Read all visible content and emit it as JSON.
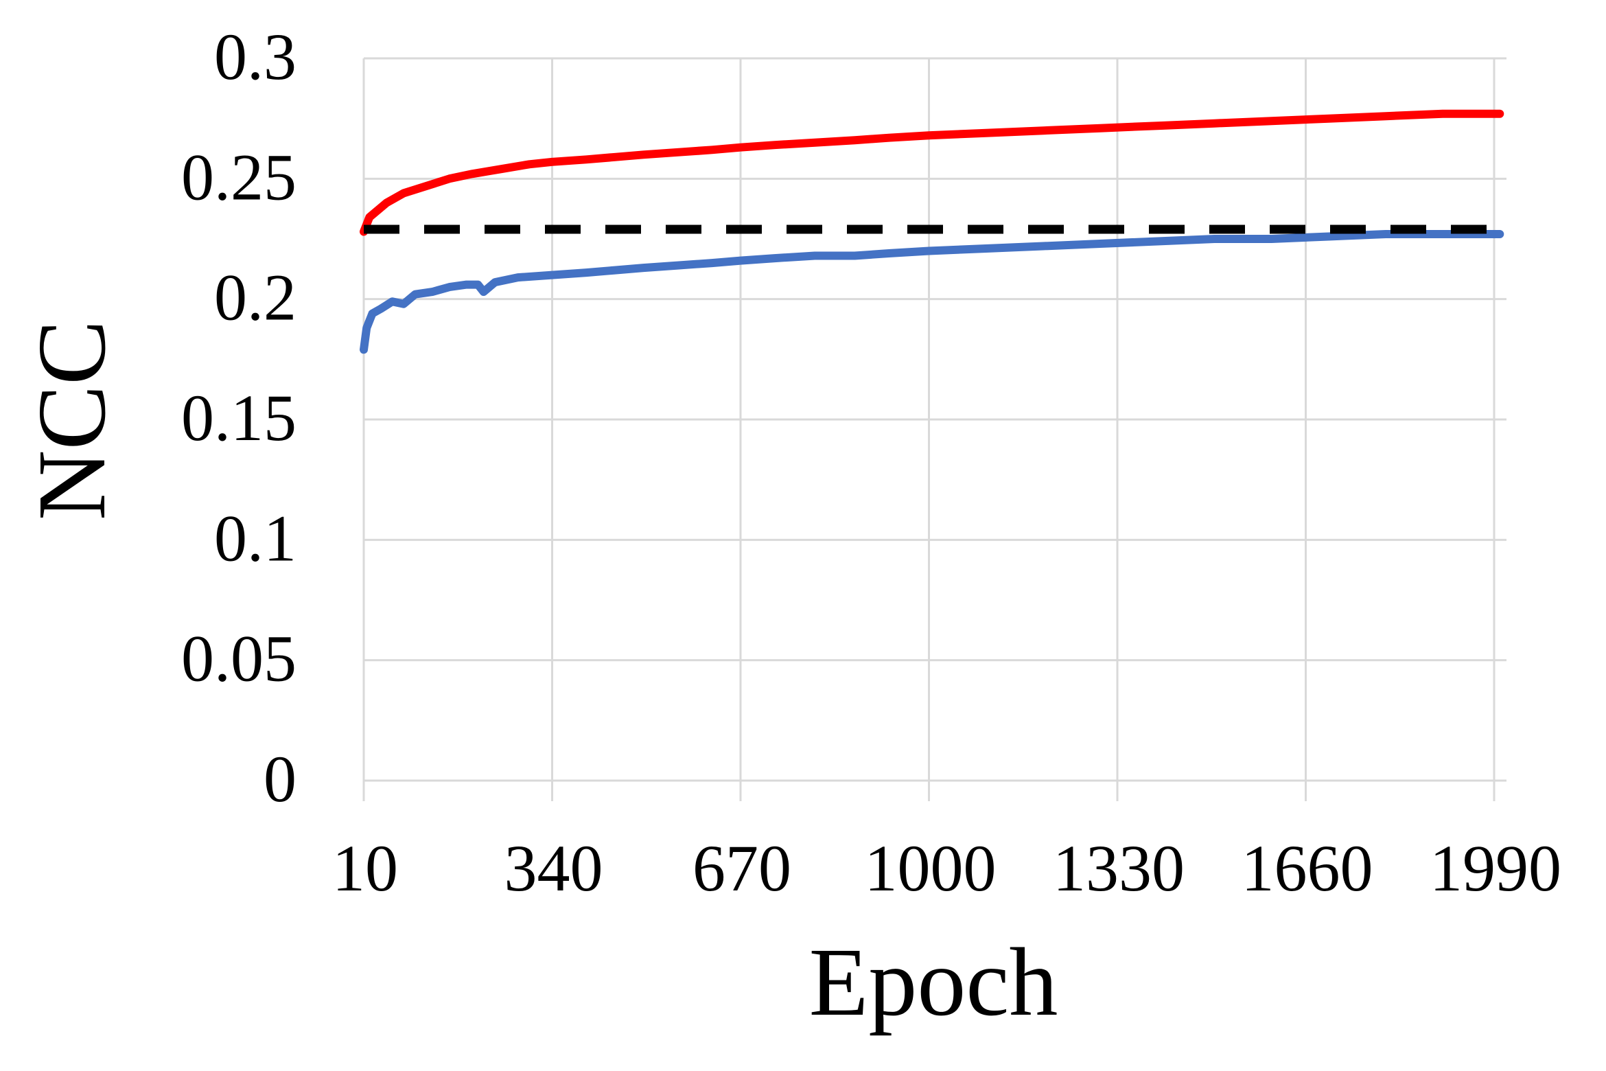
{
  "chart_data": {
    "type": "line",
    "title": "",
    "xlabel": "Epoch",
    "ylabel": "NCC",
    "xlim": [
      10,
      2000
    ],
    "ylim": [
      0,
      0.3
    ],
    "x_ticks": [
      10,
      340,
      670,
      1000,
      1330,
      1660,
      1990
    ],
    "x_tick_labels": [
      "10",
      "340",
      "670",
      "1000",
      "1330",
      "1660",
      "1990"
    ],
    "y_ticks": [
      0,
      0.05,
      0.1,
      0.15,
      0.2,
      0.25,
      0.3
    ],
    "y_tick_labels": [
      "0",
      "0.05",
      "0.1",
      "0.15",
      "0.2",
      "0.25",
      "0.3"
    ],
    "grid": true,
    "legend": "none",
    "series": [
      {
        "color": "#ff0000",
        "style": "solid",
        "x": [
          10,
          20,
          50,
          80,
          120,
          160,
          200,
          250,
          300,
          340,
          400,
          450,
          500,
          560,
          620,
          670,
          730,
          800,
          870,
          930,
          1000,
          1100,
          1200,
          1300,
          1400,
          1500,
          1600,
          1700,
          1800,
          1900,
          2000
        ],
        "values": [
          0.228,
          0.234,
          0.24,
          0.244,
          0.247,
          0.25,
          0.252,
          0.254,
          0.256,
          0.257,
          0.258,
          0.259,
          0.26,
          0.261,
          0.262,
          0.263,
          0.264,
          0.265,
          0.266,
          0.267,
          0.268,
          0.269,
          0.27,
          0.271,
          0.272,
          0.273,
          0.274,
          0.275,
          0.276,
          0.277,
          0.277
        ]
      },
      {
        "color": "#4472c4",
        "style": "solid",
        "x": [
          10,
          15,
          25,
          40,
          60,
          80,
          100,
          130,
          160,
          190,
          210,
          220,
          240,
          280,
          340,
          400,
          450,
          500,
          560,
          620,
          670,
          730,
          800,
          870,
          930,
          1000,
          1100,
          1200,
          1300,
          1400,
          1500,
          1600,
          1700,
          1800,
          1900,
          2000
        ],
        "values": [
          0.179,
          0.188,
          0.194,
          0.196,
          0.199,
          0.198,
          0.202,
          0.203,
          0.205,
          0.206,
          0.206,
          0.203,
          0.207,
          0.209,
          0.21,
          0.211,
          0.212,
          0.213,
          0.214,
          0.215,
          0.216,
          0.217,
          0.218,
          0.218,
          0.219,
          0.22,
          0.221,
          0.222,
          0.223,
          0.224,
          0.225,
          0.225,
          0.226,
          0.227,
          0.227,
          0.227
        ]
      },
      {
        "color": "#000000",
        "style": "dashed",
        "x": [
          10,
          2000
        ],
        "values": [
          0.229,
          0.229
        ]
      }
    ]
  }
}
